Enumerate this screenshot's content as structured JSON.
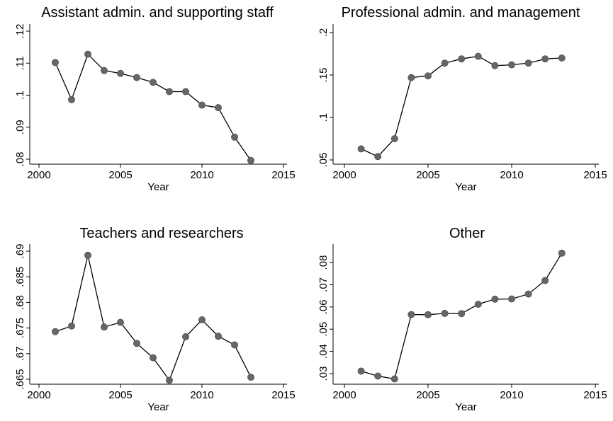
{
  "chart_data": [
    {
      "type": "line",
      "title": "Assistant admin. and supporting staff",
      "xlabel": "Year",
      "ylabel": "",
      "xlim": [
        2000,
        2015
      ],
      "ylim": [
        0.08,
        0.12
      ],
      "xticks": [
        2000,
        2005,
        2010,
        2015
      ],
      "xtick_labels": [
        "2000",
        "2005",
        "2010",
        "2015"
      ],
      "yticks": [
        0.08,
        0.09,
        0.1,
        0.11,
        0.12
      ],
      "ytick_labels": [
        ".08",
        ".09",
        ".1",
        ".11",
        ".12"
      ],
      "grid": false,
      "x": [
        2001,
        2002,
        2003,
        2004,
        2005,
        2006,
        2007,
        2008,
        2009,
        2010,
        2011,
        2012,
        2013
      ],
      "y": [
        0.1102,
        0.0986,
        0.1128,
        0.1077,
        0.1068,
        0.1055,
        0.104,
        0.1011,
        0.1011,
        0.0969,
        0.0961,
        0.0869,
        0.0796
      ]
    },
    {
      "type": "line",
      "title": "Professional admin. and management",
      "xlabel": "Year",
      "ylabel": "",
      "xlim": [
        2000,
        2015
      ],
      "ylim": [
        0.05,
        0.2
      ],
      "xticks": [
        2000,
        2005,
        2010,
        2015
      ],
      "xtick_labels": [
        "2000",
        "2005",
        "2010",
        "2015"
      ],
      "yticks": [
        0.05,
        0.1,
        0.15,
        0.2
      ],
      "ytick_labels": [
        ".05",
        ".1",
        ".15",
        ".2"
      ],
      "grid": false,
      "x": [
        2001,
        2002,
        2003,
        2004,
        2005,
        2006,
        2007,
        2008,
        2009,
        2010,
        2011,
        2012,
        2013
      ],
      "y": [
        0.063,
        0.054,
        0.075,
        0.147,
        0.149,
        0.164,
        0.169,
        0.172,
        0.161,
        0.162,
        0.164,
        0.169,
        0.17
      ]
    },
    {
      "type": "line",
      "title": "Teachers and researchers",
      "xlabel": "Year",
      "ylabel": "",
      "xlim": [
        2000,
        2015
      ],
      "ylim": [
        0.665,
        0.69
      ],
      "xticks": [
        2000,
        2005,
        2010,
        2015
      ],
      "xtick_labels": [
        "2000",
        "2005",
        "2010",
        "2015"
      ],
      "yticks": [
        0.665,
        0.67,
        0.675,
        0.68,
        0.685,
        0.69
      ],
      "ytick_labels": [
        ".665",
        ".67",
        ".675",
        ".68",
        ".685",
        ".69"
      ],
      "grid": false,
      "x": [
        2001,
        2002,
        2003,
        2004,
        2005,
        2006,
        2007,
        2008,
        2009,
        2010,
        2011,
        2012,
        2013
      ],
      "y": [
        0.6743,
        0.6754,
        0.6892,
        0.6752,
        0.6761,
        0.672,
        0.6692,
        0.6648,
        0.6733,
        0.6766,
        0.6734,
        0.6717,
        0.6654
      ]
    },
    {
      "type": "line",
      "title": "Other",
      "xlabel": "Year",
      "ylabel": "",
      "xlim": [
        2000,
        2015
      ],
      "ylim": [
        0.03,
        0.08
      ],
      "xticks": [
        2000,
        2005,
        2010,
        2015
      ],
      "xtick_labels": [
        "2000",
        "2005",
        "2010",
        "2015"
      ],
      "yticks": [
        0.03,
        0.04,
        0.05,
        0.06,
        0.07,
        0.08
      ],
      "ytick_labels": [
        ".03",
        ".04",
        ".05",
        ".06",
        ".07",
        ".08"
      ],
      "grid": false,
      "x": [
        2001,
        2002,
        2003,
        2004,
        2005,
        2006,
        2007,
        2008,
        2009,
        2010,
        2011,
        2012,
        2013
      ],
      "y": [
        0.0311,
        0.0289,
        0.0276,
        0.0566,
        0.0565,
        0.0571,
        0.057,
        0.0612,
        0.0635,
        0.0636,
        0.0658,
        0.0719,
        0.0842
      ]
    }
  ],
  "colors": {
    "line": "#000000",
    "marker": "#666666",
    "axis": "#000000"
  }
}
